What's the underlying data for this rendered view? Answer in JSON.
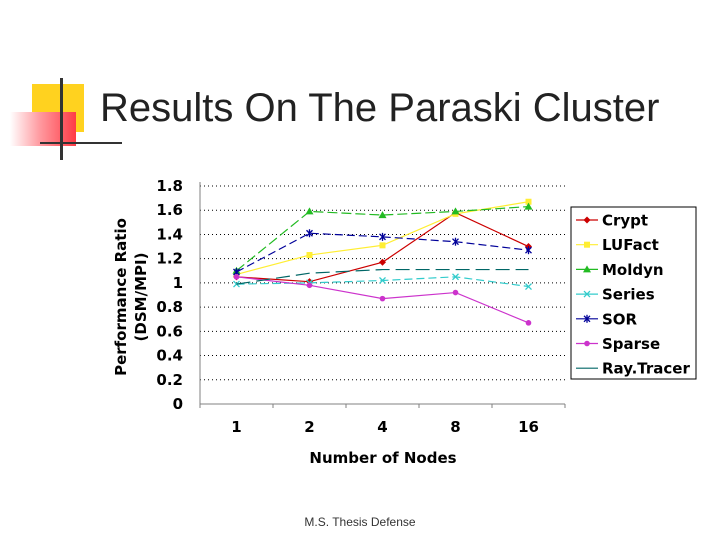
{
  "slide": {
    "title": "Results On The Paraski Cluster",
    "footer": "M.S. Thesis Defense"
  },
  "chart_data": {
    "type": "line",
    "title": "",
    "xlabel": "Number of Nodes",
    "ylabel_line1": "Performance Ratio",
    "ylabel_line2": "(DSM/MPI)",
    "categories": [
      "1",
      "2",
      "4",
      "8",
      "16"
    ],
    "ylim": [
      0,
      1.8
    ],
    "yticks": [
      "1.8",
      "1.6",
      "1.4",
      "1.2",
      "1",
      "0.8",
      "0.6",
      "0.4",
      "0.2",
      "0"
    ],
    "grid": true,
    "legend_position": "right",
    "series": [
      {
        "name": "Crypt",
        "color": "#cc0000",
        "marker": "diamond",
        "values": [
          1.05,
          1.01,
          1.17,
          1.58,
          1.3
        ]
      },
      {
        "name": "LUFact",
        "color": "#ffee33",
        "marker": "square",
        "values": [
          1.07,
          1.23,
          1.31,
          1.57,
          1.67
        ]
      },
      {
        "name": "Moldyn",
        "color": "#22bb22",
        "marker": "triangle",
        "values": [
          1.1,
          1.59,
          1.56,
          1.59,
          1.63
        ]
      },
      {
        "name": "Series",
        "color": "#33cccc",
        "marker": "x",
        "values": [
          0.99,
          1.0,
          1.02,
          1.05,
          0.97
        ]
      },
      {
        "name": "SOR",
        "color": "#000099",
        "marker": "star",
        "values": [
          1.09,
          1.41,
          1.38,
          1.34,
          1.27
        ]
      },
      {
        "name": "Sparse",
        "color": "#cc33cc",
        "marker": "dot",
        "values": [
          1.05,
          0.98,
          0.87,
          0.92,
          0.67
        ]
      },
      {
        "name": "Ray.Tracer",
        "color": "#006666",
        "marker": "none",
        "values": [
          0.99,
          1.08,
          1.11,
          1.11,
          1.11
        ]
      }
    ]
  }
}
